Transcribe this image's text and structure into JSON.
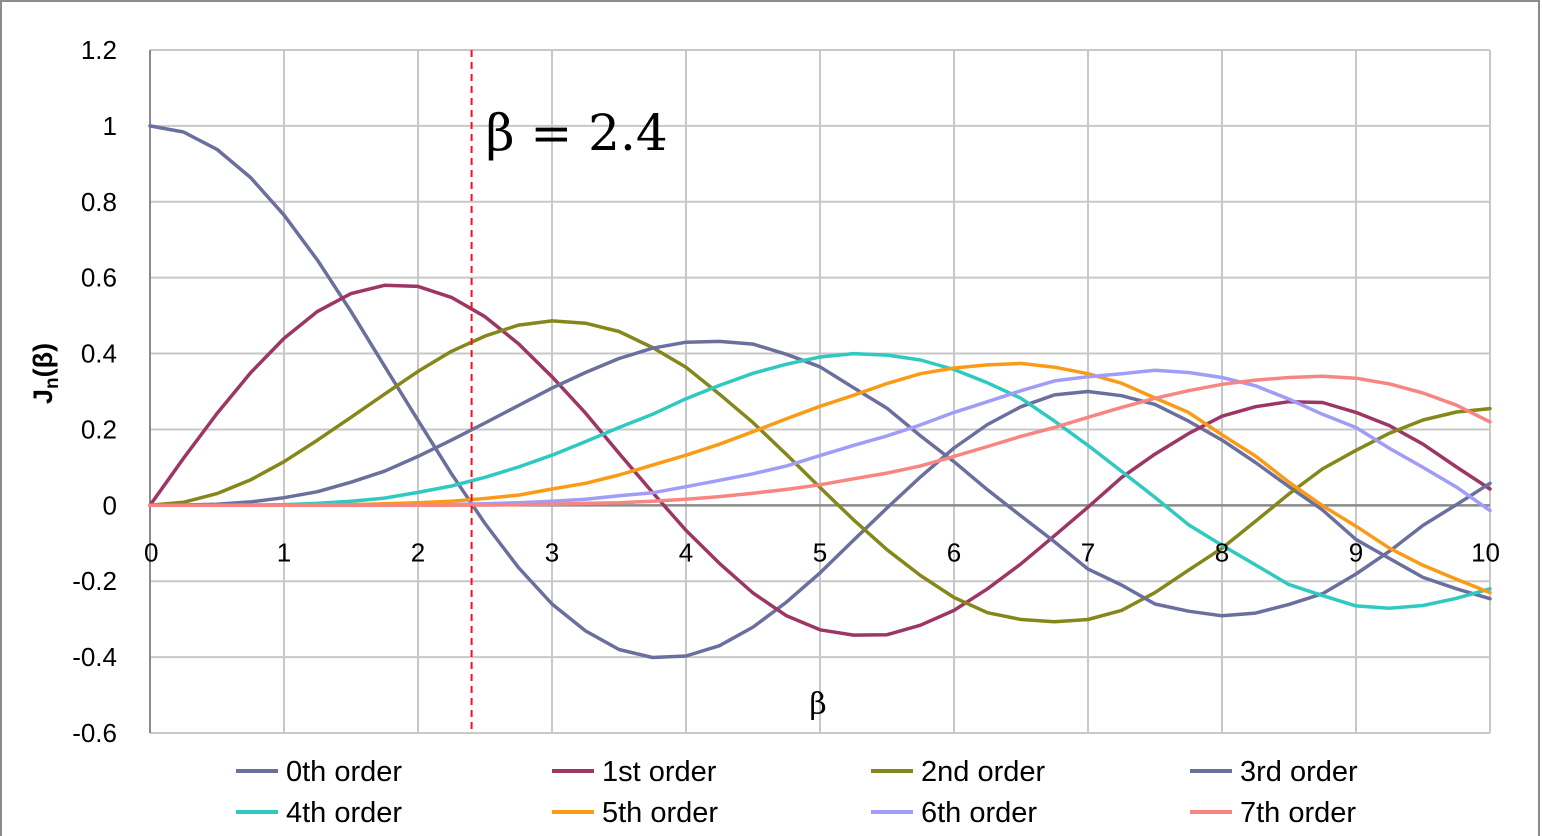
{
  "chart_data": {
    "type": "line",
    "title": "",
    "xlabel": "β",
    "ylabel": "Jn(β)",
    "ylabel_main": "J",
    "ylabel_sub": "n",
    "ylabel_tail": "(β)",
    "xlim": [
      0,
      10
    ],
    "ylim": [
      -0.6,
      1.2
    ],
    "x_ticks": [
      0,
      1,
      2,
      3,
      4,
      5,
      6,
      7,
      8,
      9,
      10
    ],
    "y_ticks": [
      -0.6,
      -0.4,
      -0.2,
      0,
      0.2,
      0.4,
      0.6,
      0.8,
      1,
      1.2
    ],
    "x_tick_labels": [
      "0",
      "1",
      "2",
      "3",
      "4",
      "5",
      "6",
      "7",
      "8",
      "9",
      "10"
    ],
    "y_tick_labels": [
      "-0.6",
      "-0.4",
      "-0.2",
      "0",
      "0.2",
      "0.4",
      "0.6",
      "0.8",
      "1",
      "1.2"
    ],
    "grid": true,
    "legend_position": "bottom",
    "annotation": {
      "text": "β = 2.4",
      "x": 2.4,
      "line_color": "#e8161a"
    },
    "x": [
      0,
      0.25,
      0.5,
      0.75,
      1,
      1.25,
      1.5,
      1.75,
      2,
      2.25,
      2.5,
      2.75,
      3,
      3.25,
      3.5,
      3.75,
      4,
      4.25,
      4.5,
      4.75,
      5,
      5.25,
      5.5,
      5.75,
      6,
      6.25,
      6.5,
      6.75,
      7,
      7.25,
      7.5,
      7.75,
      8,
      8.25,
      8.5,
      8.75,
      9,
      9.25,
      9.5,
      9.75,
      10
    ],
    "series": [
      {
        "name": "0th order",
        "color": "#6a6f9e",
        "values": [
          1,
          0.984,
          0.938,
          0.864,
          0.765,
          0.646,
          0.511,
          0.367,
          0.224,
          0.083,
          -0.048,
          -0.164,
          -0.26,
          -0.331,
          -0.38,
          -0.401,
          -0.397,
          -0.37,
          -0.321,
          -0.255,
          -0.178,
          -0.092,
          -0.007,
          0.075,
          0.151,
          0.213,
          0.26,
          0.291,
          0.3,
          0.289,
          0.266,
          0.222,
          0.172,
          0.113,
          0.049,
          -0.012,
          -0.09,
          -0.14,
          -0.19,
          -0.22,
          -0.246
        ]
      },
      {
        "name": "1st order",
        "color": "#9c3765",
        "values": [
          0,
          0.124,
          0.242,
          0.349,
          0.44,
          0.511,
          0.558,
          0.58,
          0.577,
          0.548,
          0.497,
          0.426,
          0.339,
          0.243,
          0.137,
          0.034,
          -0.066,
          -0.153,
          -0.231,
          -0.291,
          -0.328,
          -0.342,
          -0.341,
          -0.316,
          -0.277,
          -0.22,
          -0.154,
          -0.08,
          -0.005,
          0.073,
          0.135,
          0.189,
          0.235,
          0.26,
          0.273,
          0.271,
          0.245,
          0.21,
          0.161,
          0.101,
          0.043
        ]
      },
      {
        "name": "2nd order",
        "color": "#86871b",
        "values": [
          0,
          0.008,
          0.031,
          0.067,
          0.115,
          0.172,
          0.232,
          0.293,
          0.353,
          0.406,
          0.446,
          0.475,
          0.486,
          0.48,
          0.458,
          0.416,
          0.364,
          0.293,
          0.218,
          0.134,
          0.047,
          -0.038,
          -0.117,
          -0.185,
          -0.243,
          -0.283,
          -0.301,
          -0.307,
          -0.301,
          -0.277,
          -0.23,
          -0.171,
          -0.113,
          -0.042,
          0.03,
          0.096,
          0.145,
          0.19,
          0.225,
          0.246,
          0.255
        ]
      },
      {
        "name": "3rd order",
        "color": "#6a6f9e",
        "values": [
          0,
          0.001,
          0.003,
          0.009,
          0.02,
          0.036,
          0.061,
          0.09,
          0.129,
          0.172,
          0.217,
          0.263,
          0.309,
          0.35,
          0.387,
          0.414,
          0.43,
          0.432,
          0.425,
          0.398,
          0.365,
          0.31,
          0.256,
          0.183,
          0.115,
          0.041,
          -0.028,
          -0.096,
          -0.168,
          -0.21,
          -0.26,
          -0.279,
          -0.291,
          -0.284,
          -0.261,
          -0.233,
          -0.181,
          -0.121,
          -0.053,
          0.002,
          0.058
        ]
      },
      {
        "name": "4th order",
        "color": "#2fc9c1",
        "values": [
          0,
          0,
          0,
          0.001,
          0.002,
          0.005,
          0.011,
          0.019,
          0.034,
          0.051,
          0.074,
          0.101,
          0.132,
          0.168,
          0.205,
          0.24,
          0.281,
          0.316,
          0.348,
          0.372,
          0.391,
          0.4,
          0.396,
          0.383,
          0.358,
          0.323,
          0.282,
          0.222,
          0.158,
          0.09,
          0.021,
          -0.051,
          -0.105,
          -0.157,
          -0.209,
          -0.238,
          -0.265,
          -0.271,
          -0.264,
          -0.245,
          -0.22
        ]
      },
      {
        "name": "5th order",
        "color": "#fa9b15",
        "values": [
          0,
          0,
          0,
          0,
          0,
          0.001,
          0.002,
          0.004,
          0.007,
          0.011,
          0.018,
          0.027,
          0.043,
          0.058,
          0.08,
          0.106,
          0.132,
          0.161,
          0.194,
          0.228,
          0.261,
          0.29,
          0.321,
          0.347,
          0.362,
          0.37,
          0.374,
          0.364,
          0.347,
          0.322,
          0.283,
          0.245,
          0.186,
          0.13,
          0.061,
          -0.001,
          -0.055,
          -0.113,
          -0.158,
          -0.195,
          -0.23
        ]
      },
      {
        "name": "6th order",
        "color": "#a09cf8",
        "values": [
          0,
          0,
          0,
          0,
          0,
          0,
          0,
          0.001,
          0.001,
          0.002,
          0.004,
          0.007,
          0.011,
          0.016,
          0.025,
          0.033,
          0.049,
          0.066,
          0.083,
          0.104,
          0.131,
          0.158,
          0.183,
          0.212,
          0.245,
          0.273,
          0.302,
          0.328,
          0.339,
          0.347,
          0.356,
          0.35,
          0.337,
          0.315,
          0.28,
          0.24,
          0.205,
          0.15,
          0.1,
          0.048,
          -0.014
        ]
      },
      {
        "name": "7th order",
        "color": "#f78683",
        "values": [
          0,
          0,
          0,
          0,
          0,
          0,
          0,
          0,
          0,
          0,
          0.001,
          0.002,
          0.003,
          0.005,
          0.007,
          0.011,
          0.016,
          0.023,
          0.032,
          0.042,
          0.054,
          0.07,
          0.085,
          0.104,
          0.129,
          0.155,
          0.182,
          0.205,
          0.232,
          0.258,
          0.282,
          0.302,
          0.319,
          0.33,
          0.337,
          0.34,
          0.335,
          0.32,
          0.296,
          0.264,
          0.22
        ]
      }
    ]
  }
}
